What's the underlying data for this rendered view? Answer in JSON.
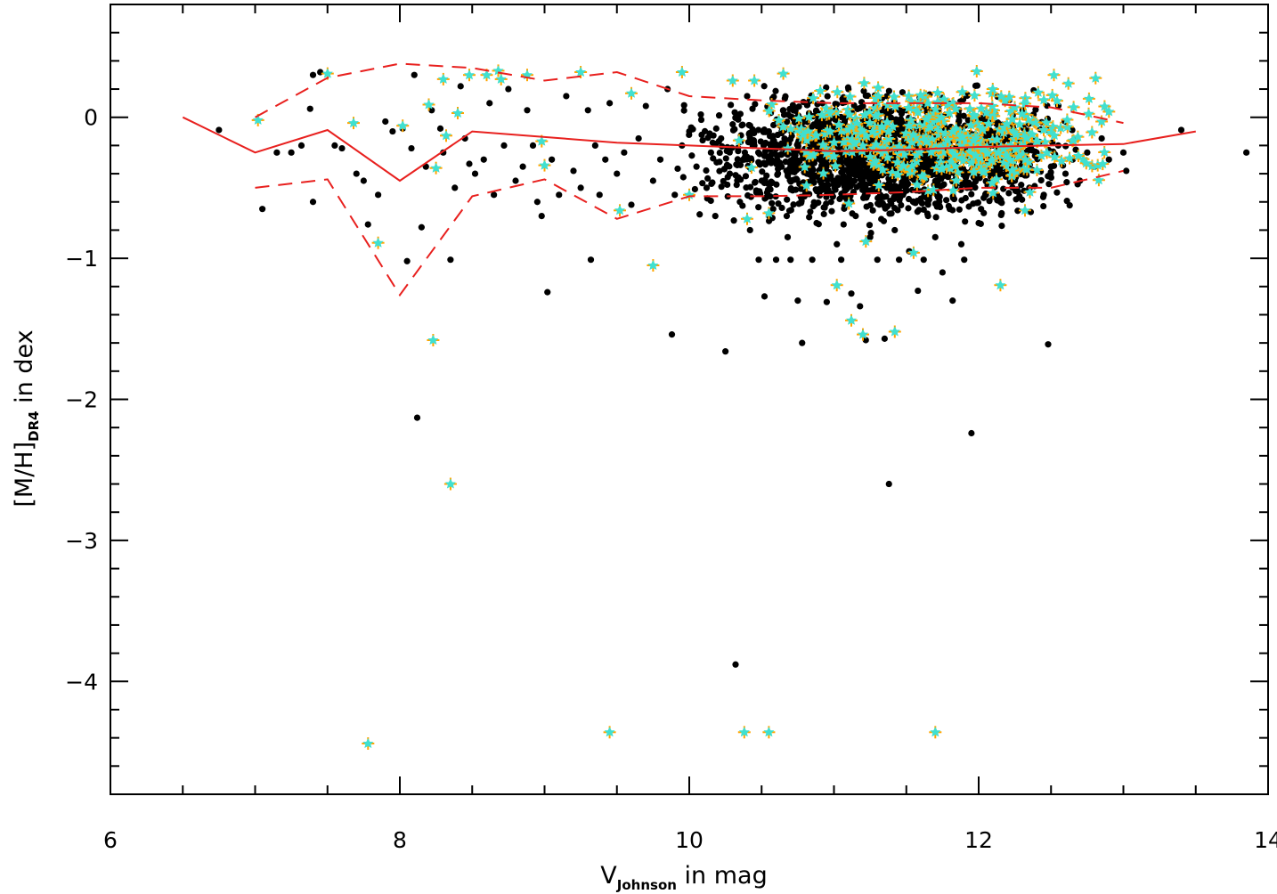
{
  "chart_data": {
    "type": "scatter",
    "title": "",
    "xlabel": {
      "main": "V",
      "subscript": "Johnson",
      "suffix": " in mag"
    },
    "ylabel": {
      "main": "[M/H]",
      "subscript": "DR4",
      "suffix": " in dex"
    },
    "xlim": [
      6,
      14
    ],
    "ylim": [
      -4.8,
      0.8
    ],
    "x_ticks": [
      6,
      8,
      10,
      12,
      14
    ],
    "x_tick_labels": [
      "6",
      "8",
      "10",
      "12",
      "14"
    ],
    "y_ticks": [
      0,
      -1,
      -2,
      -3,
      -4
    ],
    "y_tick_labels": [
      "0",
      "−1",
      "−2",
      "−3",
      "−4"
    ],
    "x_minor_step": 0.5,
    "y_minor_step": 0.2,
    "grid": false,
    "legend": "none",
    "colors": {
      "black_points": "#000000",
      "orange_crosses": "#FFA500",
      "cyan_stars": "#40E0D0",
      "lines": "#E8201E"
    },
    "series": [
      {
        "marker": "dot",
        "color": "#000000",
        "points": [
          [
            6.75,
            -0.09
          ],
          [
            7.05,
            -0.65
          ],
          [
            7.15,
            -0.25
          ],
          [
            7.25,
            -0.25
          ],
          [
            7.32,
            -0.2
          ],
          [
            7.38,
            0.06
          ],
          [
            7.4,
            -0.6
          ],
          [
            7.4,
            0.3
          ],
          [
            7.45,
            0.32
          ],
          [
            7.55,
            -0.2
          ],
          [
            7.6,
            -0.22
          ],
          [
            7.7,
            -0.4
          ],
          [
            7.75,
            -0.45
          ],
          [
            7.78,
            -0.76
          ],
          [
            7.85,
            -0.55
          ],
          [
            7.9,
            -0.03
          ],
          [
            7.95,
            -0.1
          ],
          [
            8.02,
            -0.08
          ],
          [
            8.05,
            -1.02
          ],
          [
            8.08,
            -0.22
          ],
          [
            8.1,
            0.3
          ],
          [
            8.12,
            -2.13
          ],
          [
            8.15,
            -0.78
          ],
          [
            8.18,
            -0.35
          ],
          [
            8.22,
            0.05
          ],
          [
            8.28,
            -0.08
          ],
          [
            8.3,
            -0.25
          ],
          [
            8.35,
            -1.01
          ],
          [
            8.38,
            -0.5
          ],
          [
            8.42,
            0.22
          ],
          [
            8.45,
            -0.15
          ],
          [
            8.48,
            -0.33
          ],
          [
            8.52,
            -0.4
          ],
          [
            8.58,
            -0.3
          ],
          [
            8.62,
            0.1
          ],
          [
            8.65,
            -0.55
          ],
          [
            8.72,
            -0.2
          ],
          [
            8.75,
            0.2
          ],
          [
            8.8,
            -0.45
          ],
          [
            8.85,
            -0.35
          ],
          [
            8.88,
            0.05
          ],
          [
            8.92,
            -0.2
          ],
          [
            8.95,
            -0.6
          ],
          [
            8.98,
            -0.7
          ],
          [
            9.02,
            -1.24
          ],
          [
            9.05,
            -0.3
          ],
          [
            9.1,
            -0.55
          ],
          [
            9.15,
            0.15
          ],
          [
            9.2,
            -0.38
          ],
          [
            9.25,
            -0.5
          ],
          [
            9.3,
            0.05
          ],
          [
            9.32,
            -1.01
          ],
          [
            9.35,
            -0.2
          ],
          [
            9.38,
            -0.55
          ],
          [
            9.42,
            -0.3
          ],
          [
            9.45,
            0.1
          ],
          [
            9.5,
            -0.4
          ],
          [
            9.55,
            -0.25
          ],
          [
            9.6,
            -0.62
          ],
          [
            9.65,
            -0.15
          ],
          [
            9.7,
            0.08
          ],
          [
            9.75,
            -0.45
          ],
          [
            9.8,
            -0.3
          ],
          [
            9.85,
            0.2
          ],
          [
            9.88,
            -1.54
          ],
          [
            9.9,
            -0.55
          ],
          [
            9.95,
            -0.2
          ],
          [
            10.0,
            -0.1
          ],
          [
            10.05,
            -0.35
          ],
          [
            10.08,
            0.02
          ],
          [
            10.12,
            -0.5
          ],
          [
            10.15,
            -0.25
          ],
          [
            10.18,
            -0.7
          ],
          [
            10.22,
            -0.15
          ],
          [
            10.25,
            -1.66
          ],
          [
            10.28,
            -0.4
          ],
          [
            10.3,
            -0.05
          ],
          [
            10.32,
            -3.88
          ],
          [
            10.35,
            -0.6
          ],
          [
            10.38,
            -0.3
          ],
          [
            10.4,
            0.15
          ],
          [
            10.42,
            -0.8
          ],
          [
            10.45,
            -0.2
          ],
          [
            10.48,
            -1.01
          ],
          [
            10.5,
            -0.45
          ],
          [
            10.52,
            -1.27
          ],
          [
            10.55,
            -0.1
          ],
          [
            10.58,
            -0.65
          ],
          [
            10.6,
            -1.01
          ],
          [
            10.62,
            -0.35
          ],
          [
            10.65,
            0.05
          ],
          [
            10.68,
            -0.85
          ],
          [
            10.7,
            -1.01
          ],
          [
            10.72,
            -0.25
          ],
          [
            10.75,
            -1.3
          ],
          [
            10.78,
            -1.6
          ],
          [
            10.8,
            -0.55
          ],
          [
            10.82,
            -0.15
          ],
          [
            10.85,
            -1.01
          ],
          [
            10.88,
            -0.75
          ],
          [
            10.9,
            -0.4
          ],
          [
            10.92,
            0.1
          ],
          [
            10.95,
            -1.31
          ],
          [
            10.98,
            -0.6
          ],
          [
            11.0,
            -0.2
          ],
          [
            11.02,
            -0.9
          ],
          [
            11.05,
            -1.01
          ],
          [
            11.08,
            -0.45
          ],
          [
            11.1,
            0.2
          ],
          [
            11.12,
            -1.25
          ],
          [
            11.15,
            -0.7
          ],
          [
            11.18,
            -1.34
          ],
          [
            11.2,
            -0.3
          ],
          [
            11.22,
            -1.58
          ],
          [
            11.25,
            -0.85
          ],
          [
            11.28,
            -0.1
          ],
          [
            11.3,
            -1.01
          ],
          [
            11.32,
            -0.55
          ],
          [
            11.35,
            -1.57
          ],
          [
            11.38,
            -2.6
          ],
          [
            11.4,
            -0.25
          ],
          [
            11.42,
            -0.8
          ],
          [
            11.45,
            -1.01
          ],
          [
            11.48,
            -0.4
          ],
          [
            11.5,
            0.05
          ],
          [
            11.52,
            -0.95
          ],
          [
            11.55,
            -0.6
          ],
          [
            11.58,
            -1.23
          ],
          [
            11.6,
            -0.3
          ],
          [
            11.62,
            -1.01
          ],
          [
            11.65,
            -0.7
          ],
          [
            11.68,
            -0.15
          ],
          [
            11.7,
            -0.85
          ],
          [
            11.72,
            -0.45
          ],
          [
            11.75,
            -1.1
          ],
          [
            11.78,
            -0.2
          ],
          [
            11.8,
            -0.65
          ],
          [
            11.82,
            -1.3
          ],
          [
            11.85,
            -0.35
          ],
          [
            11.88,
            -0.9
          ],
          [
            11.9,
            -1.01
          ],
          [
            11.92,
            -0.5
          ],
          [
            11.95,
            -2.24
          ],
          [
            11.98,
            -0.25
          ],
          [
            12.0,
            -0.75
          ],
          [
            12.02,
            -0.1
          ],
          [
            12.05,
            -0.55
          ],
          [
            12.08,
            -0.4
          ],
          [
            12.1,
            -0.2
          ],
          [
            12.15,
            -0.6
          ],
          [
            12.2,
            -0.3
          ],
          [
            12.25,
            -0.45
          ],
          [
            12.3,
            -0.15
          ],
          [
            12.35,
            -0.5
          ],
          [
            12.4,
            -0.25
          ],
          [
            12.45,
            -0.55
          ],
          [
            12.48,
            -1.61
          ],
          [
            12.5,
            -0.35
          ],
          [
            12.55,
            -0.2
          ],
          [
            12.6,
            -0.4
          ],
          [
            12.65,
            -0.3
          ],
          [
            12.7,
            -0.45
          ],
          [
            12.75,
            -0.25
          ],
          [
            12.8,
            -0.35
          ],
          [
            12.85,
            -0.15
          ],
          [
            12.9,
            -0.3
          ],
          [
            13.0,
            -0.25
          ],
          [
            13.02,
            -0.38
          ],
          [
            13.4,
            -0.09
          ],
          [
            13.85,
            -0.25
          ]
        ]
      },
      {
        "marker": "cross-star",
        "color": "#FFA500",
        "star_color": "#40E0D0",
        "points": [
          [
            7.02,
            -0.02
          ],
          [
            7.5,
            0.31
          ],
          [
            7.68,
            -0.04
          ],
          [
            7.78,
            -4.44
          ],
          [
            7.85,
            -0.89
          ],
          [
            8.02,
            -0.06
          ],
          [
            8.2,
            0.09
          ],
          [
            8.23,
            -1.58
          ],
          [
            8.25,
            -0.36
          ],
          [
            8.3,
            0.27
          ],
          [
            8.32,
            -0.13
          ],
          [
            8.35,
            -2.6
          ],
          [
            8.4,
            0.03
          ],
          [
            8.48,
            0.3
          ],
          [
            8.6,
            0.3
          ],
          [
            8.68,
            0.33
          ],
          [
            8.7,
            0.27
          ],
          [
            8.88,
            0.3
          ],
          [
            8.98,
            -0.17
          ],
          [
            9.0,
            -0.34
          ],
          [
            9.25,
            0.32
          ],
          [
            9.45,
            -4.36
          ],
          [
            9.52,
            -0.66
          ],
          [
            9.6,
            0.17
          ],
          [
            9.75,
            -1.05
          ],
          [
            9.95,
            0.32
          ],
          [
            10.0,
            -0.55
          ],
          [
            10.3,
            0.26
          ],
          [
            10.38,
            -4.36
          ],
          [
            10.4,
            -0.72
          ],
          [
            10.45,
            0.26
          ],
          [
            10.55,
            -4.36
          ],
          [
            10.55,
            -0.68
          ],
          [
            10.65,
            0.31
          ],
          [
            11.02,
            -1.19
          ],
          [
            11.12,
            -1.44
          ],
          [
            11.2,
            -1.54
          ],
          [
            11.22,
            -0.88
          ],
          [
            11.42,
            -1.52
          ],
          [
            11.55,
            -0.96
          ],
          [
            11.7,
            -4.36
          ],
          [
            12.15,
            -1.19
          ],
          [
            12.32,
            -0.66
          ],
          [
            12.52,
            0.3
          ],
          [
            12.62,
            0.24
          ],
          [
            12.85,
            -0.03
          ],
          [
            12.9,
            0.04
          ]
        ]
      }
    ],
    "cluster": {
      "color": "#000000",
      "x_range": [
        9.4,
        12.7
      ],
      "y_range": [
        -0.85,
        0.3
      ]
    },
    "colored_cluster": {
      "x_range": [
        9.8,
        12.9
      ],
      "y_range": [
        -0.7,
        0.33
      ]
    },
    "lines": [
      {
        "style": "solid",
        "color": "#E8201E",
        "points": [
          [
            6.5,
            0.0
          ],
          [
            7.0,
            -0.25
          ],
          [
            7.5,
            -0.09
          ],
          [
            8.0,
            -0.45
          ],
          [
            8.5,
            -0.1
          ],
          [
            9.0,
            -0.14
          ],
          [
            9.5,
            -0.18
          ],
          [
            10.0,
            -0.2
          ],
          [
            10.5,
            -0.22
          ],
          [
            11.0,
            -0.24
          ],
          [
            11.5,
            -0.23
          ],
          [
            12.0,
            -0.21
          ],
          [
            12.5,
            -0.2
          ],
          [
            13.0,
            -0.19
          ],
          [
            13.5,
            -0.1
          ]
        ]
      },
      {
        "style": "dashed",
        "color": "#E8201E",
        "points": [
          [
            7.0,
            0.0
          ],
          [
            7.5,
            0.28
          ],
          [
            8.0,
            0.38
          ],
          [
            8.5,
            0.35
          ],
          [
            9.0,
            0.26
          ],
          [
            9.5,
            0.32
          ],
          [
            10.0,
            0.15
          ],
          [
            10.5,
            0.12
          ],
          [
            11.0,
            0.1
          ],
          [
            11.5,
            0.1
          ],
          [
            12.0,
            0.1
          ],
          [
            12.5,
            0.07
          ],
          [
            13.0,
            -0.04
          ]
        ]
      },
      {
        "style": "dashed",
        "color": "#E8201E",
        "points": [
          [
            7.0,
            -0.5
          ],
          [
            7.5,
            -0.44
          ],
          [
            8.0,
            -1.26
          ],
          [
            8.5,
            -0.56
          ],
          [
            9.0,
            -0.44
          ],
          [
            9.5,
            -0.72
          ],
          [
            10.0,
            -0.56
          ],
          [
            10.5,
            -0.56
          ],
          [
            11.0,
            -0.55
          ],
          [
            11.5,
            -0.53
          ],
          [
            12.0,
            -0.5
          ],
          [
            12.5,
            -0.5
          ],
          [
            13.0,
            -0.38
          ]
        ]
      }
    ]
  }
}
